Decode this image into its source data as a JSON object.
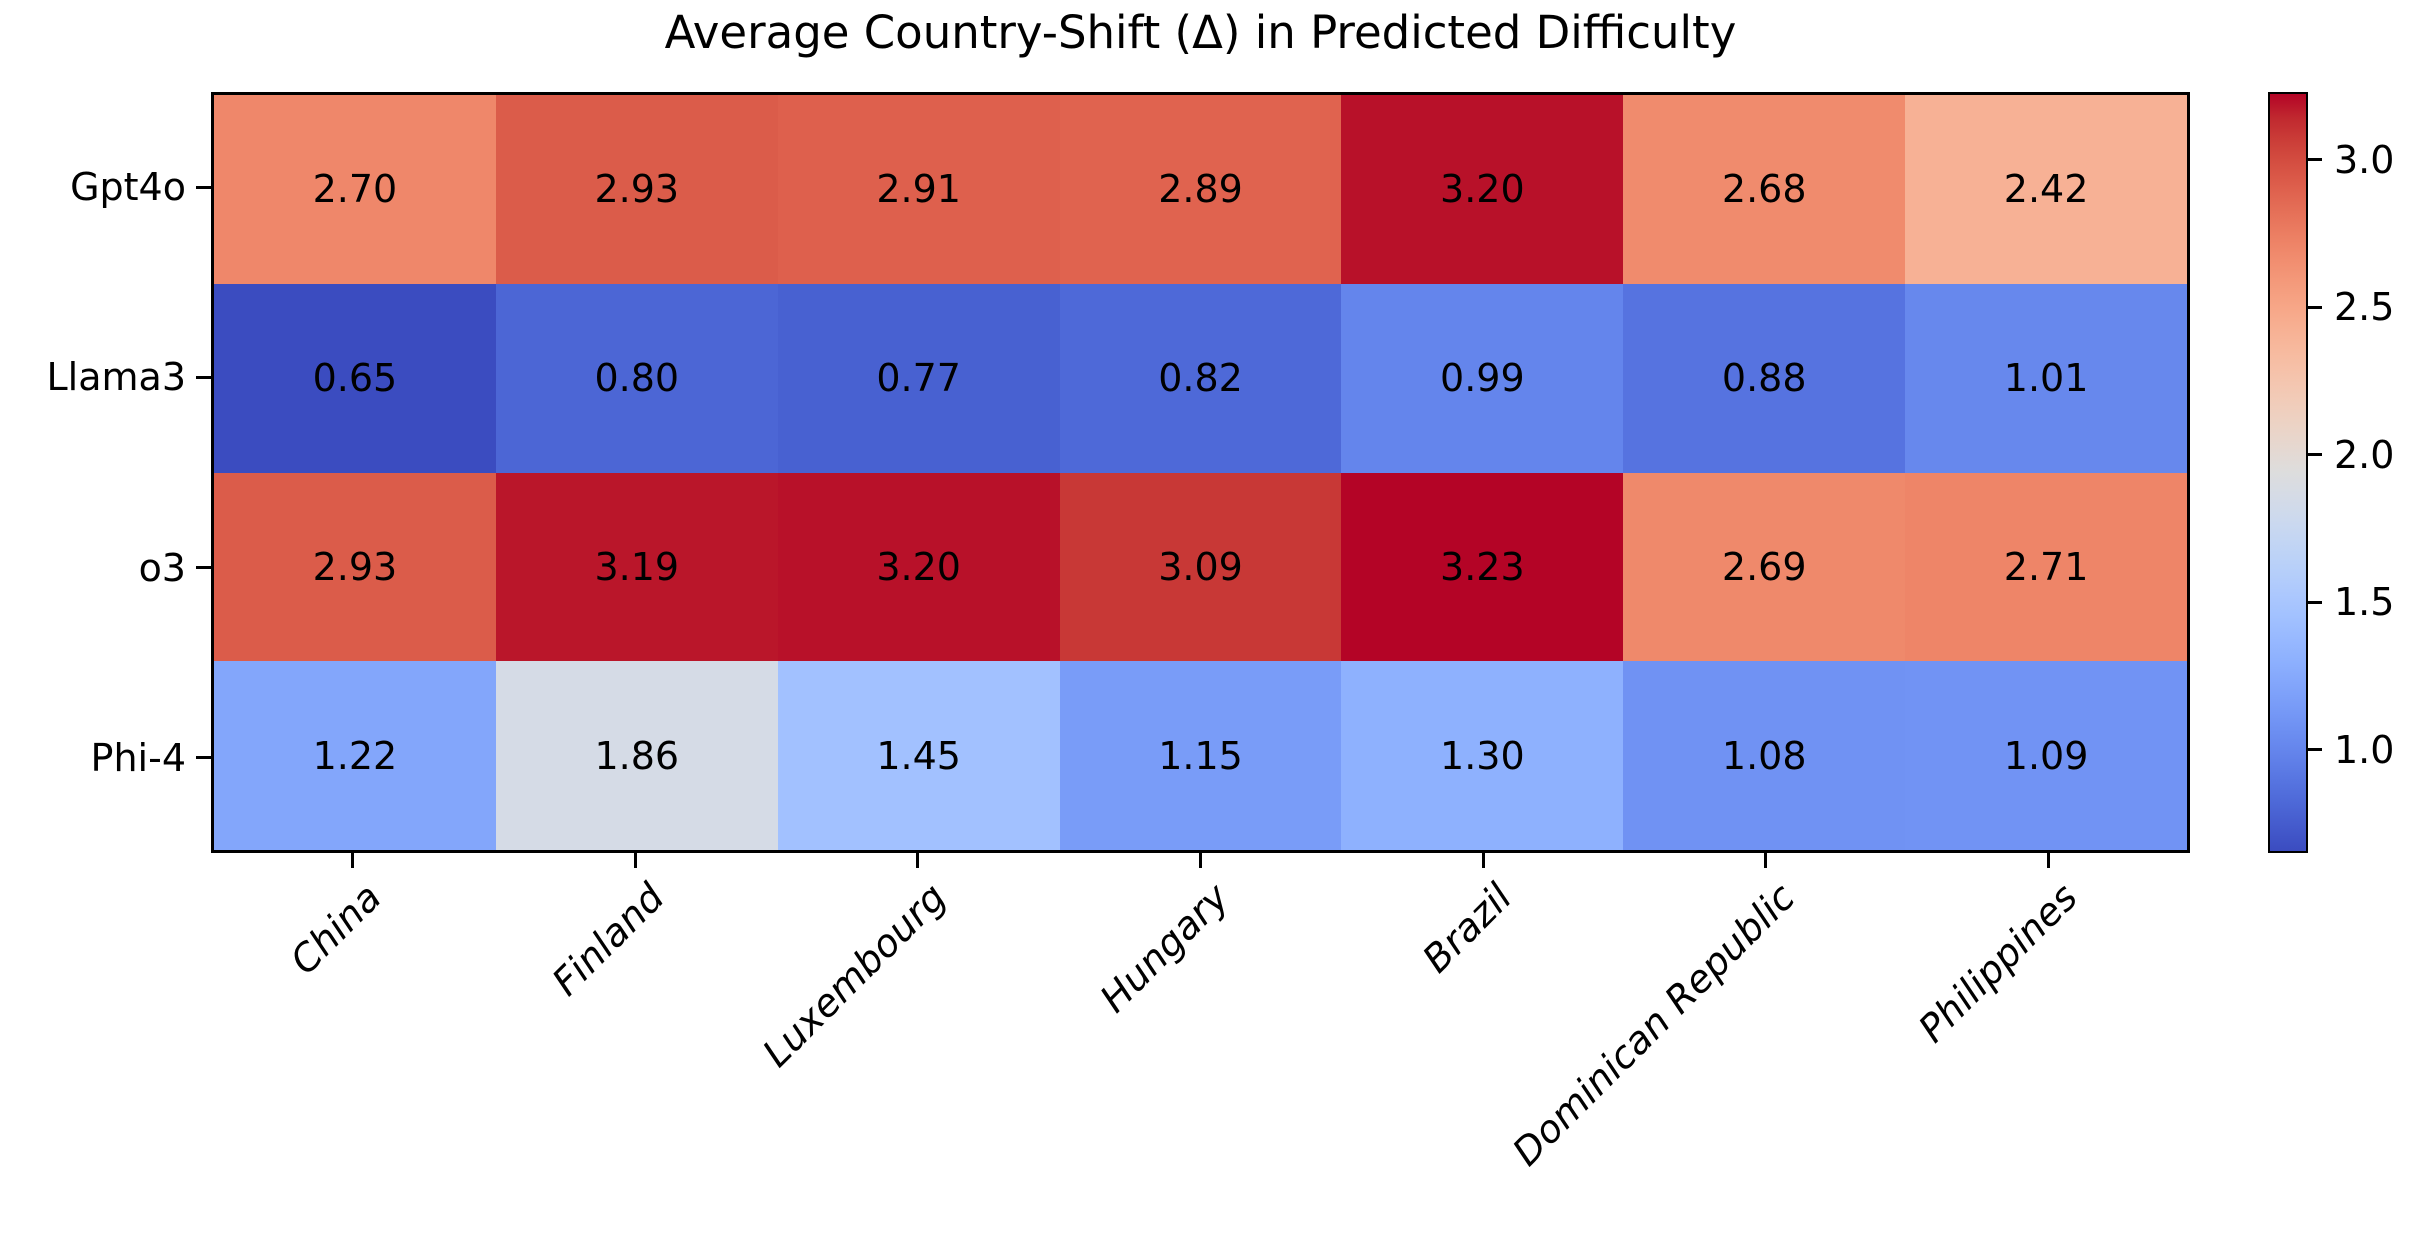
{
  "title": "Average Country-Shift (Δ) in Predicted Difficulty",
  "chart_data": {
    "type": "heatmap",
    "title": "Average Country-Shift (Δ) in Predicted Difficulty",
    "rows": [
      "Gpt4o",
      "Llama3",
      "o3",
      "Phi-4"
    ],
    "columns": [
      "China",
      "Finland",
      "Luxembourg",
      "Hungary",
      "Brazil",
      "Dominican Republic",
      "Philippines"
    ],
    "values": [
      [
        2.7,
        2.93,
        2.91,
        2.89,
        3.2,
        2.68,
        2.42
      ],
      [
        0.65,
        0.8,
        0.77,
        0.82,
        0.99,
        0.88,
        1.01
      ],
      [
        2.93,
        3.19,
        3.2,
        3.09,
        3.23,
        2.69,
        2.71
      ],
      [
        1.22,
        1.86,
        1.45,
        1.15,
        1.3,
        1.08,
        1.09
      ]
    ],
    "colormap": "coolwarm",
    "vmin": 0.65,
    "vmax": 3.23,
    "colorbar_ticks": [
      1.0,
      1.5,
      2.0,
      2.5,
      3.0
    ],
    "grid": false,
    "legend": "colorbar-right",
    "cell_text_color": "#000000",
    "value_decimals": 2
  }
}
